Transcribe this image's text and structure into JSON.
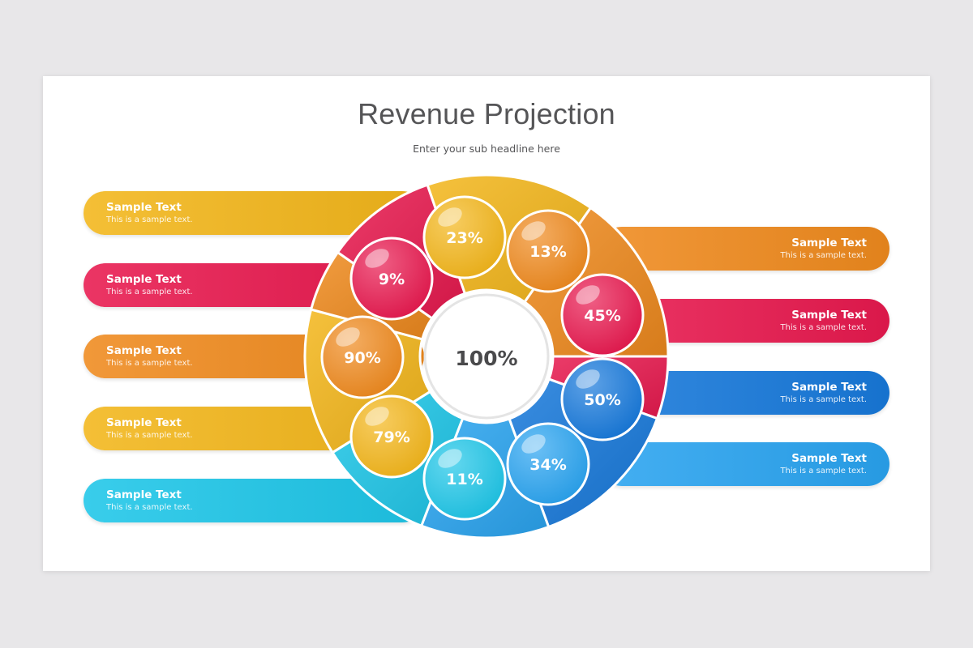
{
  "title": "Revenue Projection",
  "subtitle": "Enter your sub headline here",
  "center_value": "100%",
  "colors": {
    "yellow": "#f3b61b",
    "orange": "#ef8a1e",
    "red": "#e8194f",
    "blue": "#1779db",
    "lightblue": "#2aa4f0",
    "cyan": "#1ec6e8"
  },
  "segments": [
    {
      "value": "23%",
      "color": "yellow"
    },
    {
      "value": "13%",
      "color": "orange"
    },
    {
      "value": "45%",
      "color": "red"
    },
    {
      "value": "50%",
      "color": "blue"
    },
    {
      "value": "34%",
      "color": "lightblue"
    },
    {
      "value": "11%",
      "color": "cyan"
    },
    {
      "value": "79%",
      "color": "yellow"
    },
    {
      "value": "90%",
      "color": "orange"
    },
    {
      "value": "9%",
      "color": "red"
    }
  ],
  "left_items": [
    {
      "heading": "Sample Text",
      "text": "This is a sample text.",
      "color": "yellow"
    },
    {
      "heading": "Sample Text",
      "text": "This is a sample text.",
      "color": "red"
    },
    {
      "heading": "Sample Text",
      "text": "This is a sample text.",
      "color": "orange"
    },
    {
      "heading": "Sample Text",
      "text": "This is a sample text.",
      "color": "yellow"
    },
    {
      "heading": "Sample Text",
      "text": "This is a sample text.",
      "color": "cyan"
    }
  ],
  "right_items": [
    {
      "heading": "Sample Text",
      "text": "This is a sample text.",
      "color": "orange"
    },
    {
      "heading": "Sample Text",
      "text": "This is a sample text.",
      "color": "red"
    },
    {
      "heading": "Sample Text",
      "text": "This is a sample text.",
      "color": "blue"
    },
    {
      "heading": "Sample Text",
      "text": "This is a sample text.",
      "color": "lightblue"
    }
  ]
}
